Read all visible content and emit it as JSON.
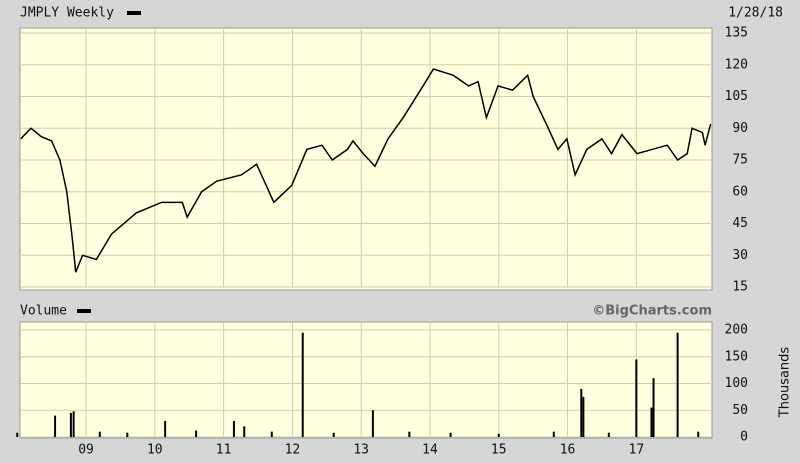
{
  "chart_data": [
    {
      "type": "line",
      "title": "JMPLY Weekly",
      "date": "1/28/18",
      "color": "#000000",
      "grid": true,
      "x": [
        2008.05,
        2008.2,
        2008.35,
        2008.5,
        2008.62,
        2008.72,
        2008.8,
        2008.85,
        2008.95,
        2009.15,
        2009.37,
        2009.73,
        2010.1,
        2010.4,
        2010.47,
        2010.68,
        2010.9,
        2011.26,
        2011.48,
        2011.73,
        2011.99,
        2012.21,
        2012.43,
        2012.58,
        2012.8,
        2012.88,
        2013.03,
        2013.2,
        2013.39,
        2013.61,
        2013.9,
        2014.05,
        2014.34,
        2014.56,
        2014.7,
        2014.82,
        2014.99,
        2015.2,
        2015.42,
        2015.5,
        2015.72,
        2015.86,
        2015.99,
        2016.11,
        2016.28,
        2016.5,
        2016.64,
        2016.79,
        2017.01,
        2017.23,
        2017.45,
        2017.6,
        2017.74,
        2017.81,
        2017.96,
        2018.0,
        2018.08
      ],
      "values": [
        85,
        90,
        86,
        84,
        75,
        60,
        38,
        22,
        30,
        28,
        40,
        50,
        55,
        55,
        48,
        60,
        65,
        68,
        73,
        55,
        63,
        80,
        82,
        75,
        80,
        84,
        78,
        72,
        85,
        95,
        110,
        118,
        115,
        110,
        112,
        95,
        110,
        108,
        115,
        105,
        90,
        80,
        85,
        68,
        80,
        85,
        78,
        87,
        78,
        80,
        82,
        75,
        78,
        90,
        88,
        82,
        92
      ],
      "xlim": [
        2008.04,
        2018.1
      ],
      "ylim": [
        15,
        135
      ],
      "yticks": [
        15,
        30,
        45,
        60,
        75,
        90,
        105,
        120,
        135
      ]
    },
    {
      "type": "bar",
      "title": "Volume",
      "credit": "©BigCharts.com",
      "ylabel": "Thousands",
      "color": "#000000",
      "x": [
        2008.0,
        2008.55,
        2008.78,
        2008.82,
        2009.2,
        2009.6,
        2010.15,
        2010.6,
        2011.15,
        2011.3,
        2011.7,
        2012.15,
        2012.6,
        2013.17,
        2013.7,
        2014.3,
        2015.0,
        2015.8,
        2016.2,
        2016.23,
        2016.6,
        2017.0,
        2017.22,
        2017.25,
        2017.6,
        2017.9
      ],
      "values": [
        8,
        40,
        45,
        48,
        10,
        8,
        30,
        12,
        30,
        20,
        10,
        195,
        8,
        50,
        10,
        8,
        6,
        10,
        90,
        75,
        8,
        145,
        55,
        110,
        195,
        10
      ],
      "xlim": [
        2008.04,
        2018.1
      ],
      "ylim": [
        0,
        200
      ],
      "yticks": [
        0,
        50,
        100,
        150,
        200
      ],
      "xticks": [
        {
          "value": 2009,
          "label": "09"
        },
        {
          "value": 2010,
          "label": "10"
        },
        {
          "value": 2011,
          "label": "11"
        },
        {
          "value": 2012,
          "label": "12"
        },
        {
          "value": 2013,
          "label": "13"
        },
        {
          "value": 2014,
          "label": "14"
        },
        {
          "value": 2015,
          "label": "15"
        },
        {
          "value": 2016,
          "label": "16"
        },
        {
          "value": 2017,
          "label": "17"
        }
      ]
    }
  ]
}
